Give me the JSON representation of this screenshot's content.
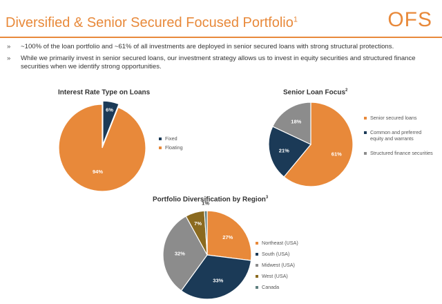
{
  "header": {
    "title": "Diversified & Senior Secured Focused Portfolio",
    "title_footnote": "1",
    "logo": "OFS"
  },
  "bullets": [
    {
      "mark": "»",
      "text": "~100% of the loan portfolio and ~61% of all investments are deployed in senior secured loans with strong structural protections."
    },
    {
      "mark": "»",
      "text": "While we primarily invest in senior secured loans, our investment strategy allows us to invest in equity securities and structured finance securities when we identify strong opportunities."
    }
  ],
  "colors": {
    "accent": "#E8893A",
    "navy": "#1B3A57",
    "gray": "#8C8C8C",
    "olive": "#8B6A1F",
    "teal": "#5E7F7F"
  },
  "chart_data": [
    {
      "type": "pie",
      "title": "Interest Rate Type on Loans",
      "title_footnote": "",
      "categories": [
        "Fixed",
        "Floating"
      ],
      "values": [
        6,
        94
      ],
      "labels": [
        "6%",
        "94%"
      ],
      "colors": [
        "#1B3A57",
        "#E8893A"
      ],
      "legend_position": "right"
    },
    {
      "type": "pie",
      "title": "Senior Loan Focus",
      "title_footnote": "2",
      "categories": [
        "Senior secured loans",
        "Common and preferred equity and warrants",
        "Structured finance securities"
      ],
      "values": [
        61,
        21,
        18
      ],
      "labels": [
        "61%",
        "21%",
        "18%"
      ],
      "colors": [
        "#E8893A",
        "#1B3A57",
        "#8C8C8C"
      ],
      "legend_position": "right"
    },
    {
      "type": "pie",
      "title": "Portfolio Diversification by Region",
      "title_footnote": "3",
      "categories": [
        "Northeast (USA)",
        "South (USA)",
        "Midwest (USA)",
        "West (USA)",
        "Canada"
      ],
      "values": [
        27,
        33,
        32,
        7,
        1
      ],
      "labels": [
        "27%",
        "33%",
        "32%",
        "7%",
        "1%"
      ],
      "colors": [
        "#E8893A",
        "#1B3A57",
        "#8C8C8C",
        "#8B6A1F",
        "#5E7F7F"
      ],
      "legend_position": "right"
    }
  ]
}
